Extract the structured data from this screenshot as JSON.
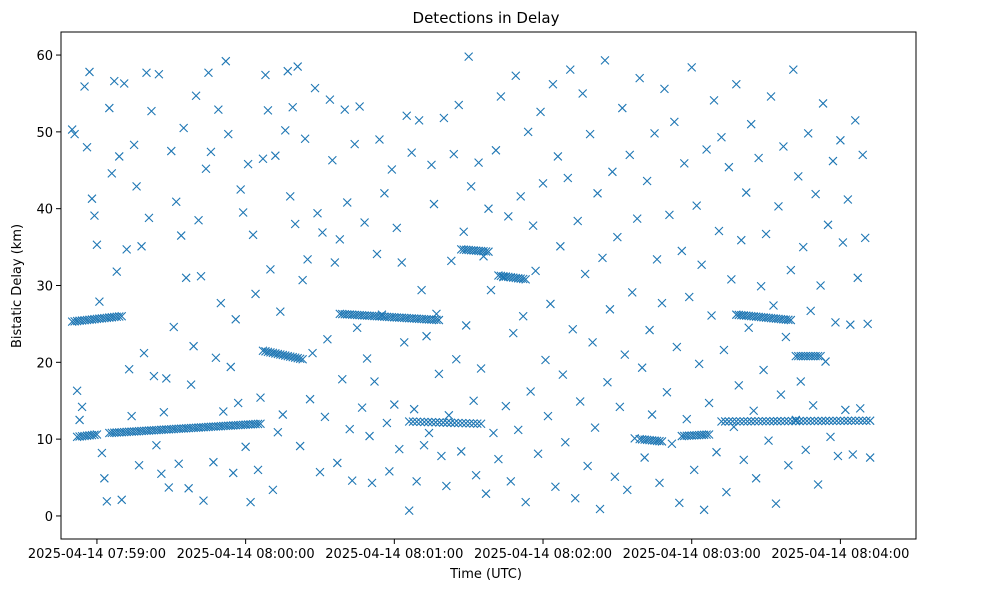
{
  "chart_data": {
    "type": "scatter",
    "title": "Detections in Delay",
    "xlabel": "Time (UTC)",
    "ylabel": "Bistatic Delay (km)",
    "marker": "x",
    "color": "#1f77b4",
    "x_unit": "seconds after 2025-04-14 07:58:50",
    "xlim": [
      -4.5,
      340.5
    ],
    "ylim": [
      -3.0,
      63.0
    ],
    "x_ticks": [
      {
        "value": 10,
        "label": "2025-04-14 07:59:00"
      },
      {
        "value": 70,
        "label": "2025-04-14 08:00:00"
      },
      {
        "value": 130,
        "label": "2025-04-14 08:01:00"
      },
      {
        "value": 190,
        "label": "2025-04-14 08:02:00"
      },
      {
        "value": 250,
        "label": "2025-04-14 08:03:00"
      },
      {
        "value": 310,
        "label": "2025-04-14 08:04:00"
      }
    ],
    "y_ticks": [
      0,
      10,
      20,
      30,
      40,
      50,
      60
    ],
    "tracks": [
      {
        "x_start": 0,
        "x_end": 20,
        "y_start": 25.3,
        "y_end": 26.0,
        "step": 1
      },
      {
        "x_start": 2,
        "x_end": 10,
        "y_start": 10.3,
        "y_end": 10.6,
        "step": 1
      },
      {
        "x_start": 15,
        "x_end": 76,
        "y_start": 10.8,
        "y_end": 12.0,
        "step": 1
      },
      {
        "x_start": 77,
        "x_end": 93,
        "y_start": 21.5,
        "y_end": 20.4,
        "step": 1
      },
      {
        "x_start": 108,
        "x_end": 148,
        "y_start": 26.3,
        "y_end": 25.5,
        "step": 1
      },
      {
        "x_start": 136,
        "x_end": 165,
        "y_start": 12.3,
        "y_end": 12.0,
        "step": 1.5
      },
      {
        "x_start": 157,
        "x_end": 168,
        "y_start": 34.7,
        "y_end": 34.4,
        "step": 1
      },
      {
        "x_start": 172,
        "x_end": 183,
        "y_start": 31.3,
        "y_end": 30.8,
        "step": 1
      },
      {
        "x_start": 229,
        "x_end": 238,
        "y_start": 10.0,
        "y_end": 9.7,
        "step": 1
      },
      {
        "x_start": 246,
        "x_end": 257,
        "y_start": 10.4,
        "y_end": 10.6,
        "step": 1
      },
      {
        "x_start": 262,
        "x_end": 322,
        "y_start": 12.3,
        "y_end": 12.4,
        "step": 1.5
      },
      {
        "x_start": 268,
        "x_end": 290,
        "y_start": 26.2,
        "y_end": 25.5,
        "step": 1
      },
      {
        "x_start": 292,
        "x_end": 302,
        "y_start": 20.8,
        "y_end": 20.8,
        "step": 1
      }
    ],
    "scattered_points": [
      [
        0,
        50.3
      ],
      [
        1,
        49.7
      ],
      [
        2,
        16.3
      ],
      [
        3,
        12.5
      ],
      [
        4,
        14.2
      ],
      [
        5,
        55.9
      ],
      [
        6,
        48.0
      ],
      [
        7,
        57.8
      ],
      [
        8,
        41.3
      ],
      [
        9,
        39.1
      ],
      [
        10,
        35.3
      ],
      [
        11,
        27.9
      ],
      [
        12,
        8.2
      ],
      [
        13,
        4.9
      ],
      [
        14,
        1.9
      ],
      [
        15,
        53.1
      ],
      [
        16,
        44.6
      ],
      [
        17,
        56.6
      ],
      [
        18,
        31.8
      ],
      [
        19,
        46.8
      ],
      [
        20,
        2.1
      ],
      [
        21,
        56.3
      ],
      [
        22,
        34.7
      ],
      [
        23,
        19.1
      ],
      [
        24,
        13.0
      ],
      [
        25,
        48.3
      ],
      [
        26,
        42.9
      ],
      [
        27,
        6.6
      ],
      [
        28,
        35.1
      ],
      [
        29,
        21.2
      ],
      [
        30,
        57.7
      ],
      [
        31,
        38.8
      ],
      [
        32,
        52.7
      ],
      [
        33,
        18.2
      ],
      [
        34,
        9.2
      ],
      [
        35,
        57.5
      ],
      [
        36,
        5.5
      ],
      [
        37,
        13.5
      ],
      [
        38,
        17.9
      ],
      [
        39,
        3.7
      ],
      [
        40,
        47.5
      ],
      [
        41,
        24.6
      ],
      [
        42,
        40.9
      ],
      [
        43,
        6.8
      ],
      [
        44,
        36.5
      ],
      [
        45,
        50.5
      ],
      [
        46,
        31.0
      ],
      [
        47,
        3.6
      ],
      [
        48,
        17.1
      ],
      [
        49,
        22.1
      ],
      [
        50,
        54.7
      ],
      [
        51,
        38.5
      ],
      [
        52,
        31.2
      ],
      [
        53,
        2.0
      ],
      [
        54,
        45.2
      ],
      [
        55,
        57.7
      ],
      [
        56,
        47.4
      ],
      [
        57,
        7.0
      ],
      [
        58,
        20.6
      ],
      [
        59,
        52.9
      ],
      [
        60,
        27.7
      ],
      [
        61,
        13.6
      ],
      [
        62,
        59.2
      ],
      [
        63,
        49.7
      ],
      [
        64,
        19.4
      ],
      [
        65,
        5.6
      ],
      [
        66,
        25.6
      ],
      [
        67,
        14.7
      ],
      [
        68,
        42.5
      ],
      [
        69,
        39.5
      ],
      [
        70,
        9.0
      ],
      [
        71,
        45.8
      ],
      [
        72,
        1.8
      ],
      [
        73,
        36.6
      ],
      [
        74,
        28.9
      ],
      [
        75,
        6.0
      ],
      [
        76,
        15.4
      ],
      [
        77,
        46.5
      ],
      [
        78,
        57.4
      ],
      [
        79,
        52.8
      ],
      [
        80,
        32.1
      ],
      [
        81,
        3.4
      ],
      [
        82,
        46.9
      ],
      [
        83,
        10.9
      ],
      [
        84,
        26.6
      ],
      [
        85,
        13.2
      ],
      [
        86,
        50.2
      ],
      [
        87,
        57.9
      ],
      [
        88,
        41.6
      ],
      [
        89,
        53.2
      ],
      [
        90,
        38.0
      ],
      [
        91,
        58.5
      ],
      [
        92,
        9.1
      ],
      [
        93,
        30.7
      ],
      [
        94,
        49.1
      ],
      [
        95,
        33.4
      ],
      [
        96,
        15.2
      ],
      [
        97,
        21.2
      ],
      [
        98,
        55.7
      ],
      [
        99,
        39.4
      ],
      [
        100,
        5.7
      ],
      [
        101,
        36.9
      ],
      [
        102,
        12.9
      ],
      [
        103,
        23.0
      ],
      [
        104,
        54.2
      ],
      [
        105,
        46.3
      ],
      [
        106,
        33.0
      ],
      [
        107,
        6.9
      ],
      [
        108,
        36.0
      ],
      [
        109,
        17.8
      ],
      [
        110,
        52.9
      ],
      [
        111,
        40.8
      ],
      [
        112,
        11.3
      ],
      [
        113,
        4.6
      ],
      [
        114,
        48.4
      ],
      [
        115,
        24.5
      ],
      [
        116,
        53.3
      ],
      [
        117,
        14.1
      ],
      [
        118,
        38.2
      ],
      [
        119,
        20.5
      ],
      [
        120,
        10.4
      ],
      [
        121,
        4.3
      ],
      [
        122,
        17.5
      ],
      [
        123,
        34.1
      ],
      [
        124,
        49.0
      ],
      [
        125,
        26.2
      ],
      [
        126,
        42.0
      ],
      [
        127,
        12.1
      ],
      [
        128,
        5.8
      ],
      [
        129,
        45.1
      ],
      [
        130,
        14.5
      ],
      [
        131,
        37.5
      ],
      [
        132,
        8.7
      ],
      [
        133,
        33.0
      ],
      [
        134,
        22.6
      ],
      [
        135,
        52.1
      ],
      [
        136,
        0.7
      ],
      [
        137,
        47.3
      ],
      [
        138,
        13.9
      ],
      [
        139,
        4.5
      ],
      [
        140,
        51.5
      ],
      [
        141,
        29.4
      ],
      [
        142,
        9.2
      ],
      [
        143,
        23.4
      ],
      [
        144,
        10.8
      ],
      [
        145,
        45.7
      ],
      [
        146,
        40.6
      ],
      [
        147,
        26.3
      ],
      [
        148,
        18.5
      ],
      [
        149,
        7.8
      ],
      [
        150,
        51.8
      ],
      [
        151,
        3.9
      ],
      [
        152,
        13.1
      ],
      [
        153,
        33.2
      ],
      [
        154,
        47.1
      ],
      [
        155,
        20.4
      ],
      [
        156,
        53.5
      ],
      [
        157,
        8.4
      ],
      [
        158,
        37.0
      ],
      [
        159,
        24.8
      ],
      [
        160,
        59.8
      ],
      [
        161,
        42.9
      ],
      [
        162,
        15.0
      ],
      [
        163,
        5.3
      ],
      [
        164,
        46.0
      ],
      [
        165,
        19.2
      ],
      [
        166,
        33.8
      ],
      [
        167,
        2.9
      ],
      [
        168,
        40.0
      ],
      [
        169,
        29.4
      ],
      [
        170,
        10.8
      ],
      [
        171,
        47.6
      ],
      [
        172,
        7.4
      ],
      [
        173,
        54.6
      ],
      [
        174,
        31.1
      ],
      [
        175,
        14.3
      ],
      [
        176,
        39.0
      ],
      [
        177,
        4.5
      ],
      [
        178,
        23.8
      ],
      [
        179,
        57.3
      ],
      [
        180,
        11.2
      ],
      [
        181,
        41.6
      ],
      [
        182,
        26.0
      ],
      [
        183,
        1.8
      ],
      [
        184,
        50.0
      ],
      [
        185,
        16.2
      ],
      [
        186,
        37.8
      ],
      [
        187,
        31.9
      ],
      [
        188,
        8.1
      ],
      [
        189,
        52.6
      ],
      [
        190,
        43.3
      ],
      [
        191,
        20.3
      ],
      [
        192,
        13.0
      ],
      [
        193,
        27.6
      ],
      [
        194,
        56.2
      ],
      [
        195,
        3.8
      ],
      [
        196,
        46.8
      ],
      [
        197,
        35.1
      ],
      [
        198,
        18.4
      ],
      [
        199,
        9.6
      ],
      [
        200,
        44.0
      ],
      [
        201,
        58.1
      ],
      [
        202,
        24.3
      ],
      [
        203,
        2.3
      ],
      [
        204,
        38.4
      ],
      [
        205,
        14.9
      ],
      [
        206,
        55.0
      ],
      [
        207,
        31.5
      ],
      [
        208,
        6.5
      ],
      [
        209,
        49.7
      ],
      [
        210,
        22.6
      ],
      [
        211,
        11.5
      ],
      [
        212,
        42.0
      ],
      [
        213,
        0.9
      ],
      [
        214,
        33.6
      ],
      [
        215,
        59.3
      ],
      [
        216,
        17.4
      ],
      [
        217,
        26.9
      ],
      [
        218,
        44.8
      ],
      [
        219,
        5.1
      ],
      [
        220,
        36.3
      ],
      [
        221,
        14.2
      ],
      [
        222,
        53.1
      ],
      [
        223,
        21.0
      ],
      [
        224,
        3.4
      ],
      [
        225,
        47.0
      ],
      [
        226,
        29.1
      ],
      [
        227,
        10.1
      ],
      [
        228,
        38.7
      ],
      [
        229,
        57.0
      ],
      [
        230,
        19.3
      ],
      [
        231,
        7.6
      ],
      [
        232,
        43.6
      ],
      [
        233,
        24.2
      ],
      [
        234,
        13.2
      ],
      [
        235,
        49.8
      ],
      [
        236,
        33.4
      ],
      [
        237,
        4.3
      ],
      [
        238,
        27.7
      ],
      [
        239,
        55.6
      ],
      [
        240,
        16.1
      ],
      [
        241,
        39.2
      ],
      [
        242,
        9.4
      ],
      [
        243,
        51.3
      ],
      [
        244,
        22.0
      ],
      [
        245,
        1.7
      ],
      [
        246,
        34.5
      ],
      [
        247,
        45.9
      ],
      [
        248,
        12.6
      ],
      [
        249,
        28.5
      ],
      [
        250,
        58.4
      ],
      [
        251,
        6.0
      ],
      [
        252,
        40.4
      ],
      [
        253,
        19.8
      ],
      [
        254,
        32.7
      ],
      [
        255,
        0.8
      ],
      [
        256,
        47.7
      ],
      [
        257,
        14.7
      ],
      [
        258,
        26.1
      ],
      [
        259,
        54.1
      ],
      [
        260,
        8.3
      ],
      [
        261,
        37.1
      ],
      [
        262,
        49.3
      ],
      [
        263,
        21.6
      ],
      [
        264,
        3.1
      ],
      [
        265,
        45.4
      ],
      [
        266,
        30.8
      ],
      [
        267,
        11.6
      ],
      [
        268,
        56.2
      ],
      [
        269,
        17.0
      ],
      [
        270,
        35.9
      ],
      [
        271,
        7.3
      ],
      [
        272,
        42.1
      ],
      [
        273,
        24.5
      ],
      [
        274,
        51.0
      ],
      [
        275,
        13.7
      ],
      [
        276,
        4.9
      ],
      [
        277,
        46.6
      ],
      [
        278,
        29.9
      ],
      [
        279,
        19.0
      ],
      [
        280,
        36.7
      ],
      [
        281,
        9.8
      ],
      [
        282,
        54.6
      ],
      [
        283,
        27.4
      ],
      [
        284,
        1.6
      ],
      [
        285,
        40.3
      ],
      [
        286,
        15.8
      ],
      [
        287,
        48.1
      ],
      [
        288,
        23.3
      ],
      [
        289,
        6.6
      ],
      [
        290,
        32.0
      ],
      [
        291,
        58.1
      ],
      [
        292,
        12.5
      ],
      [
        293,
        44.2
      ],
      [
        294,
        17.5
      ],
      [
        295,
        35.0
      ],
      [
        296,
        8.6
      ],
      [
        297,
        49.8
      ],
      [
        298,
        26.7
      ],
      [
        299,
        14.4
      ],
      [
        300,
        41.9
      ],
      [
        301,
        4.1
      ],
      [
        302,
        30.0
      ],
      [
        303,
        53.7
      ],
      [
        304,
        20.1
      ],
      [
        305,
        37.9
      ],
      [
        306,
        10.3
      ],
      [
        307,
        46.2
      ],
      [
        308,
        25.2
      ],
      [
        309,
        7.8
      ],
      [
        310,
        48.9
      ],
      [
        311,
        35.6
      ],
      [
        312,
        13.8
      ],
      [
        313,
        41.2
      ],
      [
        314,
        24.9
      ],
      [
        315,
        8.0
      ],
      [
        316,
        51.5
      ],
      [
        317,
        31.0
      ],
      [
        318,
        14.0
      ],
      [
        319,
        47.0
      ],
      [
        320,
        36.2
      ],
      [
        321,
        25.0
      ],
      [
        322,
        7.6
      ]
    ]
  }
}
